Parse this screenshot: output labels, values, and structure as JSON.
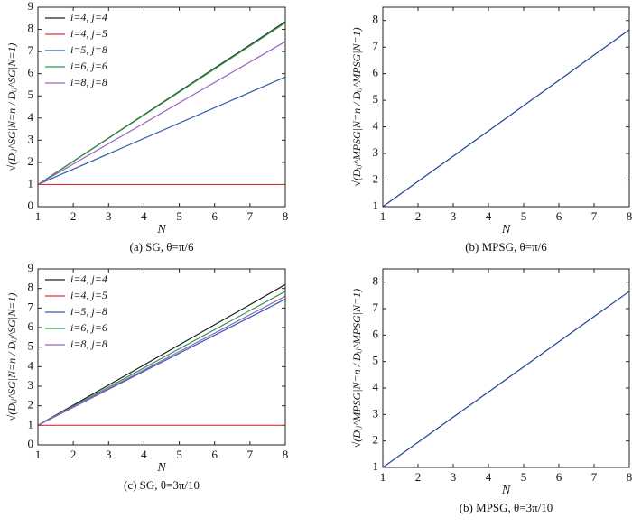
{
  "chart_data": [
    {
      "type": "line",
      "caption": "(a) SG, θ=π/6",
      "xlabel": "N",
      "ylabel": "√(Dᵢⱼ^SG|N=n / Dᵢⱼ^SG|N=1)",
      "x": [
        1,
        8
      ],
      "xlim": [
        1,
        8
      ],
      "xticks": [
        1,
        2,
        3,
        4,
        5,
        6,
        7,
        8
      ],
      "ylim": [
        0,
        9
      ],
      "yticks": [
        0,
        1,
        2,
        3,
        4,
        5,
        6,
        7,
        8,
        9
      ],
      "legend": "upper left",
      "series": [
        {
          "name": "i=4, j=4",
          "color": "#222222",
          "values": [
            1,
            8.35
          ]
        },
        {
          "name": "i=4, j=5",
          "color": "#e0303a",
          "values": [
            1,
            1
          ]
        },
        {
          "name": "i=5, j=8",
          "color": "#2f5fa8",
          "values": [
            1,
            5.85
          ]
        },
        {
          "name": "i=6, j=6",
          "color": "#2e9a4a",
          "values": [
            1,
            8.3
          ]
        },
        {
          "name": "i=8, j=8",
          "color": "#9a63c0",
          "values": [
            1,
            7.45
          ]
        }
      ]
    },
    {
      "type": "line",
      "caption": "(b) MPSG, θ=π/6",
      "xlabel": "N",
      "ylabel": "√(Dᵢⱼ^MPSG|N=n / Dᵢⱼ^MPSG|N=1)",
      "x": [
        1,
        8
      ],
      "xlim": [
        1,
        8
      ],
      "xticks": [
        1,
        2,
        3,
        4,
        5,
        6,
        7,
        8
      ],
      "ylim": [
        1,
        8.5
      ],
      "yticks": [
        1,
        2,
        3,
        4,
        5,
        6,
        7,
        8
      ],
      "series": [
        {
          "color": "#1f3f99",
          "values": [
            1,
            7.65
          ]
        }
      ]
    },
    {
      "type": "line",
      "caption": "(c) SG, θ=3π/10",
      "xlabel": "N",
      "ylabel": "√(Dᵢⱼ^SG|N=n / Dᵢⱼ^SG|N=1)",
      "x": [
        1,
        8
      ],
      "xlim": [
        1,
        8
      ],
      "xticks": [
        1,
        2,
        3,
        4,
        5,
        6,
        7,
        8
      ],
      "ylim": [
        0,
        9
      ],
      "yticks": [
        0,
        1,
        2,
        3,
        4,
        5,
        6,
        7,
        8,
        9
      ],
      "legend": "upper left",
      "series": [
        {
          "name": "i=4, j=4",
          "color": "#222222",
          "values": [
            1,
            8.2
          ]
        },
        {
          "name": "i=4, j=5",
          "color": "#e0303a",
          "values": [
            1,
            1
          ]
        },
        {
          "name": "i=5, j=8",
          "color": "#2f5fa8",
          "values": [
            1,
            7.45
          ]
        },
        {
          "name": "i=6, j=6",
          "color": "#2e9a4a",
          "values": [
            1,
            7.85
          ]
        },
        {
          "name": "i=8, j=8",
          "color": "#9a63c0",
          "values": [
            1,
            7.6
          ]
        }
      ]
    },
    {
      "type": "line",
      "caption": "(b) MPSG, θ=3π/10",
      "xlabel": "N",
      "ylabel": "√(Dᵢⱼ^MPSG|N=n / Dᵢⱼ^MPSG|N=1)",
      "x": [
        1,
        8
      ],
      "xlim": [
        1,
        8
      ],
      "xticks": [
        1,
        2,
        3,
        4,
        5,
        6,
        7,
        8
      ],
      "ylim": [
        1,
        8.5
      ],
      "yticks": [
        1,
        2,
        3,
        4,
        5,
        6,
        7,
        8
      ],
      "series": [
        {
          "color": "#1f3f99",
          "values": [
            1,
            7.65
          ]
        }
      ]
    }
  ]
}
